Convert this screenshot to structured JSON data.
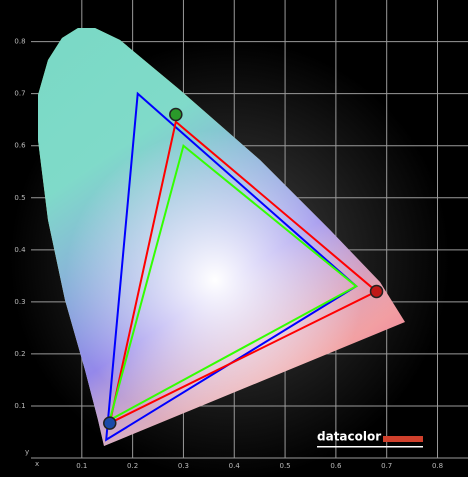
{
  "chart_data": {
    "type": "line",
    "xlabel": "x",
    "ylabel": "y",
    "xlim": [
      0,
      0.86
    ],
    "ylim": [
      0,
      0.88
    ],
    "xticks": [
      0.1,
      0.2,
      0.3,
      0.4,
      0.5,
      0.6,
      0.7,
      0.8
    ],
    "yticks": [
      0.1,
      0.2,
      0.3,
      0.4,
      0.5,
      0.6,
      0.7,
      0.8
    ],
    "grid": true,
    "closed": true,
    "series": [
      {
        "color": "#0000ff",
        "x": [
          0.21,
          0.64,
          0.148
        ],
        "y": [
          0.7,
          0.33,
          0.035
        ]
      },
      {
        "color": "#ff0000",
        "x": [
          0.285,
          0.68,
          0.155
        ],
        "y": [
          0.646,
          0.32,
          0.067
        ]
      },
      {
        "color": "#33ff00",
        "x": [
          0.3,
          0.64,
          0.155
        ],
        "y": [
          0.6,
          0.33,
          0.073
        ]
      }
    ],
    "markers": {
      "x": [
        0.285,
        0.68,
        0.155
      ],
      "y": [
        0.66,
        0.32,
        0.067
      ],
      "colors": [
        "#2a9a2a",
        "#c01818",
        "#1a4aa8"
      ]
    },
    "logo": "datacolor"
  }
}
